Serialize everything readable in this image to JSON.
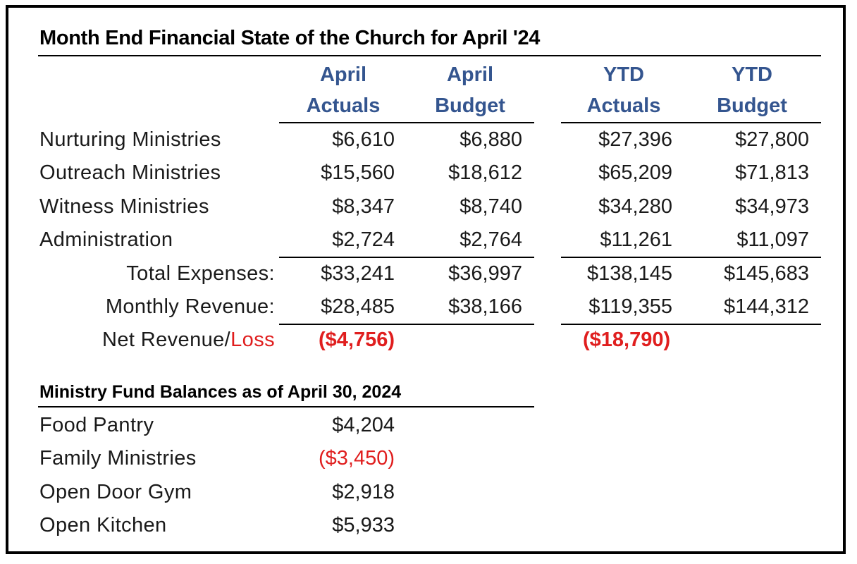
{
  "title": "Month End Financial State of the Church for April '24",
  "headers": [
    {
      "line1": "April",
      "line2": "Actuals"
    },
    {
      "line1": "April",
      "line2": "Budget"
    },
    {
      "line1": "YTD",
      "line2": "Actuals"
    },
    {
      "line1": "YTD",
      "line2": "Budget"
    }
  ],
  "rows": [
    {
      "label": "Nurturing Ministries",
      "values": [
        "$6,610",
        "$6,880",
        "$27,396",
        "$27,800"
      ]
    },
    {
      "label": "Outreach Ministries",
      "values": [
        "$15,560",
        "$18,612",
        "$65,209",
        "$71,813"
      ]
    },
    {
      "label": "Witness Ministries",
      "values": [
        "$8,347",
        "$8,740",
        "$34,280",
        "$34,973"
      ]
    },
    {
      "label": "Administration",
      "values": [
        "$2,724",
        "$2,764",
        "$11,261",
        "$11,097"
      ]
    }
  ],
  "totals": [
    {
      "label": "Total Expenses:",
      "values": [
        "$33,241",
        "$36,997",
        "$138,145",
        "$145,683"
      ]
    },
    {
      "label": "Monthly Revenue:",
      "values": [
        "$28,485",
        "$38,166",
        "$119,355",
        "$144,312"
      ]
    }
  ],
  "net": {
    "label_prefix": "Net Revenue/",
    "label_loss": "Loss",
    "april": "($4,756)",
    "ytd": "($18,790)"
  },
  "funds": {
    "title": "Ministry Fund Balances as of April 30, 2024",
    "items": [
      {
        "label": "Food Pantry",
        "value": "$4,204",
        "negative": false
      },
      {
        "label": "Family Ministries",
        "value": "($3,450)",
        "negative": true
      },
      {
        "label": "Open Door Gym",
        "value": "$2,918",
        "negative": false
      },
      {
        "label": "Open Kitchen",
        "value": "$5,933",
        "negative": false
      }
    ]
  },
  "colors": {
    "header": "#34558f",
    "negative": "#e01e1e"
  }
}
